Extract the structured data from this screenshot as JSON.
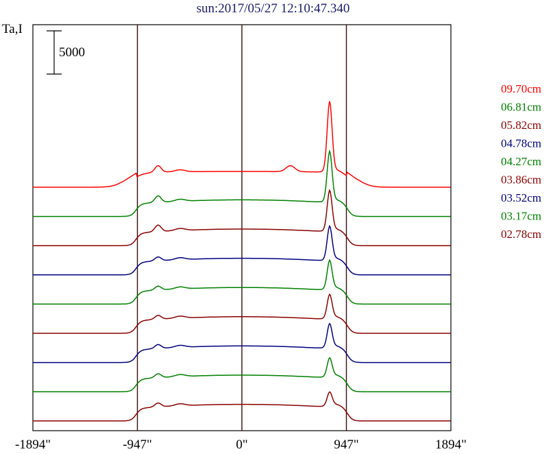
{
  "title": "sun:2017/05/27 12:10:47.340",
  "y_axis_label": "Ta,I",
  "scale_bar_label": "5000",
  "chart_data": {
    "type": "line",
    "title": "sun:2017/05/27 12:10:47.340",
    "ylabel": "Ta,I",
    "xlabel": "",
    "x_ticks": [
      "-1894\"",
      "-947\"",
      "0\"",
      "947\"",
      "1894\""
    ],
    "x_tick_values": [
      -1894,
      -947,
      0,
      947,
      1894
    ],
    "xlim": [
      -1894,
      1894
    ],
    "vertical_lines": [
      -947,
      0,
      947
    ],
    "scale_bar_value": 5000,
    "grid": false,
    "legend_placement": "right",
    "series": [
      {
        "name": "09.70cm",
        "color": "#ff0000",
        "baseline": 0
      },
      {
        "name": "06.81cm",
        "color": "#008000",
        "baseline": 1
      },
      {
        "name": "05.82cm",
        "color": "#8b0000",
        "baseline": 2
      },
      {
        "name": "04.78cm",
        "color": "#000080",
        "baseline": 3
      },
      {
        "name": "04.27cm",
        "color": "#008000",
        "baseline": 4
      },
      {
        "name": "03.86cm",
        "color": "#8b0000",
        "baseline": 5
      },
      {
        "name": "03.52cm",
        "color": "#000080",
        "baseline": 6
      },
      {
        "name": "03.17cm",
        "color": "#008000",
        "baseline": 7
      },
      {
        "name": "02.78cm",
        "color": "#8b0000",
        "baseline": 8
      }
    ]
  }
}
